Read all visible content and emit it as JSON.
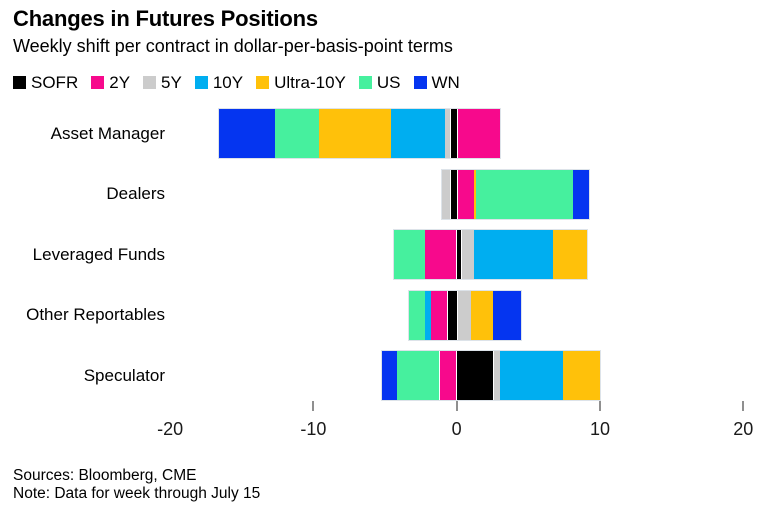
{
  "header": {
    "title": "Changes in Futures Positions",
    "subtitle": "Weekly shift per contract in dollar-per-basis-point terms"
  },
  "chart_data": {
    "type": "bar",
    "variant": "horizontal-diverging-stacked",
    "title": "Changes in Futures Positions",
    "subtitle": "Weekly shift per contract in dollar-per-basis-point terms",
    "categories": [
      "Asset Manager",
      "Dealers",
      "Leveraged Funds",
      "Other Reportables",
      "Speculator"
    ],
    "series": [
      {
        "name": "SOFR",
        "color": "#000000",
        "values": [
          -0.4,
          -0.4,
          0.3,
          -0.6,
          2.5
        ]
      },
      {
        "name": "2Y",
        "color": "#F7098C",
        "values": [
          3.0,
          1.2,
          -2.2,
          -1.2,
          -1.2
        ]
      },
      {
        "name": "5Y",
        "color": "#CCCCCC",
        "values": [
          -0.4,
          -0.6,
          0.9,
          1.0,
          0.5
        ]
      },
      {
        "name": "10Y",
        "color": "#00AEF0",
        "values": [
          -3.8,
          0.0,
          5.5,
          -0.4,
          4.4
        ]
      },
      {
        "name": "Ultra-10Y",
        "color": "#FFC10A",
        "values": [
          -5.0,
          0.15,
          2.4,
          1.5,
          2.6
        ]
      },
      {
        "name": "US",
        "color": "#46F09E",
        "values": [
          -3.1,
          6.8,
          -2.2,
          -1.1,
          -3.0
        ]
      },
      {
        "name": "WN",
        "color": "#0535F0",
        "values": [
          -3.9,
          1.1,
          0.0,
          2.0,
          -1.0
        ]
      }
    ],
    "x_axis": {
      "tick_labels": [
        "-20",
        "-10",
        "0",
        "10",
        "20"
      ],
      "tick_values": [
        -20,
        -10,
        0,
        10,
        20
      ],
      "ticks_with_marks": [
        -10,
        0,
        10,
        20
      ],
      "xlim": [
        -25,
        21.5
      ],
      "grid": false
    },
    "legend_position": "top"
  },
  "footer": {
    "sources": "Sources: Bloomberg, CME",
    "note": "Note: Data for week through July 15"
  }
}
